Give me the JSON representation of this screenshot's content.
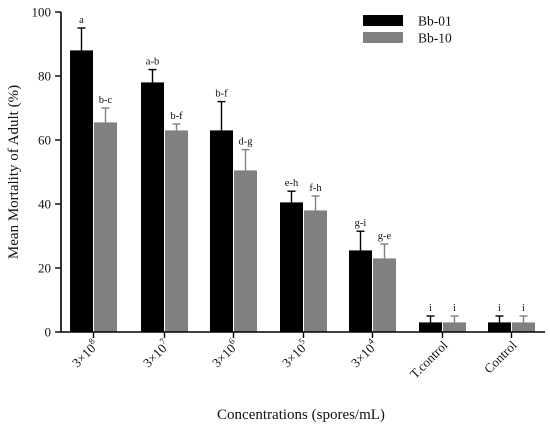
{
  "chart_data": {
    "type": "bar",
    "xlabel": "Concentrations (spores/mL)",
    "ylabel": "Mean Mortality of Adult (%)",
    "ylim": [
      0,
      100
    ],
    "yticks": [
      "0",
      "20",
      "40",
      "60",
      "80",
      "100"
    ],
    "legend_position": "top-right",
    "categories": [
      {
        "base": "3×10",
        "exp": "8"
      },
      {
        "base": "3×10",
        "exp": "7"
      },
      {
        "base": "3×10",
        "exp": "6"
      },
      {
        "base": "3×10",
        "exp": "5"
      },
      {
        "base": "3×10",
        "exp": "4"
      },
      {
        "base": "T.control",
        "exp": ""
      },
      {
        "base": "Control",
        "exp": ""
      }
    ],
    "series": [
      {
        "name": "Bb-01",
        "color": "#000000",
        "values": [
          88,
          78,
          63,
          40.5,
          25.5,
          3,
          3
        ],
        "errors": [
          7,
          4,
          9,
          3.5,
          6,
          2,
          2
        ],
        "letters": [
          "a",
          "a-b",
          "b-f",
          "e-h",
          "g-i",
          "i",
          "i"
        ]
      },
      {
        "name": "Bb-10",
        "color": "#808080",
        "values": [
          65.5,
          63,
          50.5,
          38,
          23,
          3,
          3
        ],
        "errors": [
          4.5,
          2,
          6.5,
          4.5,
          4.5,
          2,
          2
        ],
        "letters": [
          "b-c",
          "b-f",
          "d-g",
          "f-h",
          "g-e",
          "i",
          "i"
        ]
      }
    ]
  }
}
